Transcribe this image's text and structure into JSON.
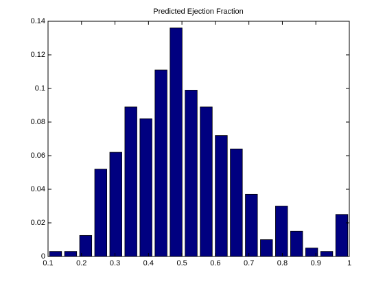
{
  "chart_data": {
    "type": "histogram",
    "title": "Predicted Ejection Fraction",
    "bins": [
      0.1,
      0.145,
      0.19,
      0.235,
      0.28,
      0.325,
      0.37,
      0.415,
      0.46,
      0.505,
      0.55,
      0.595,
      0.64,
      0.685,
      0.73,
      0.775,
      0.82,
      0.865,
      0.91,
      0.955,
      1.0
    ],
    "values": [
      0.003,
      0.003,
      0.0125,
      0.052,
      0.062,
      0.089,
      0.082,
      0.111,
      0.136,
      0.099,
      0.089,
      0.072,
      0.064,
      0.037,
      0.01,
      0.03,
      0.015,
      0.005,
      0.003,
      0.025
    ],
    "color": "#000080",
    "xlim": [
      0.1,
      1
    ],
    "xticks": [
      0.1,
      0.2,
      0.3,
      0.4,
      0.5,
      0.6,
      0.7,
      0.8,
      0.9,
      1
    ],
    "ylim": [
      0,
      0.14
    ],
    "yticks": [
      0,
      0.02,
      0.04,
      0.06,
      0.08,
      0.1,
      0.12,
      0.14
    ]
  }
}
